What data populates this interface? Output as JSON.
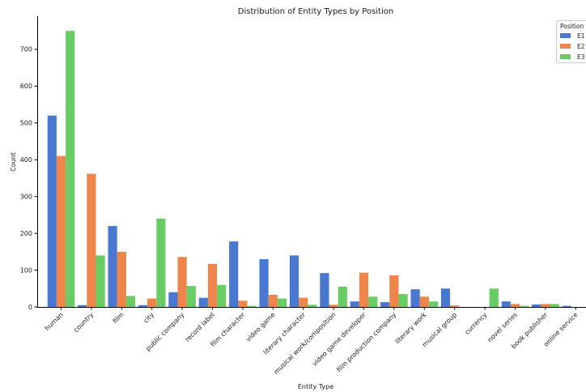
{
  "chart_data": {
    "type": "bar",
    "title": "Distribution of Entity Types by Position",
    "xlabel": "Entity Type",
    "ylabel": "Count",
    "ylim": [
      0,
      790
    ],
    "yticks": [
      0,
      100,
      200,
      300,
      400,
      500,
      600,
      700
    ],
    "grid": false,
    "legend": {
      "title": "Position",
      "placement": "top-right"
    },
    "categories": [
      "human",
      "country",
      "film",
      "city",
      "public company",
      "record label",
      "film character",
      "video game",
      "literary character",
      "musical work/composition",
      "video game developer",
      "film production company",
      "literary work",
      "musical group",
      "currency",
      "novel series",
      "book publisher",
      "online service"
    ],
    "series": [
      {
        "name": "E1",
        "color": "#4878d0",
        "values": [
          520,
          5,
          220,
          5,
          40,
          25,
          178,
          130,
          140,
          92,
          15,
          13,
          48,
          50,
          0,
          15,
          7,
          3
        ]
      },
      {
        "name": "E2",
        "color": "#ee854a",
        "values": [
          410,
          362,
          150,
          23,
          136,
          117,
          17,
          33,
          25,
          6,
          93,
          86,
          28,
          4,
          0,
          8,
          8,
          0
        ]
      },
      {
        "name": "E3",
        "color": "#6acc64",
        "values": [
          750,
          140,
          30,
          240,
          57,
          60,
          3,
          23,
          6,
          55,
          28,
          35,
          15,
          0,
          50,
          3,
          8,
          0
        ]
      }
    ]
  }
}
